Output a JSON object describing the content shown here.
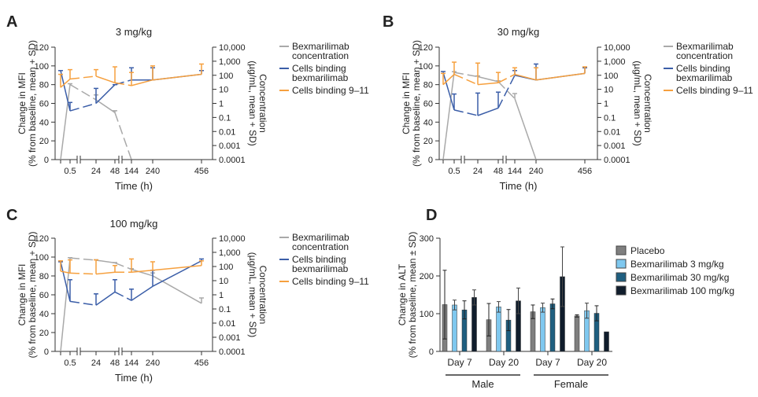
{
  "colors": {
    "concentration": "#a9a9a9",
    "bex": "#3b5ea8",
    "nine11": "#f6a03e",
    "axis": "#333333"
  },
  "shared_line": {
    "xlabel": "Time (h)",
    "ylabel": [
      "Change in MFI",
      "(% from baseline, mean + SD)"
    ],
    "y2label": [
      "Concentration",
      "(µg/mL, mean + SD)"
    ],
    "x_ticks": [
      "0.5",
      "24",
      "48",
      "144",
      "240",
      "456"
    ],
    "y_ticks": [
      "0",
      "20",
      "40",
      "60",
      "80",
      "100",
      "120"
    ],
    "y2_ticks": [
      "0.0001",
      "0.001",
      "0.01",
      "0.1",
      "1",
      "10",
      "100",
      "1,000",
      "10,000"
    ],
    "legend": [
      [
        "Bexmarilimab",
        "concentration"
      ],
      [
        "Cells binding",
        "bexmarilimab"
      ],
      [
        "Cells binding 9–11"
      ]
    ]
  },
  "chart_data": [
    {
      "panel": "A",
      "type": "line",
      "title": "3 mg/kg",
      "x": [
        0,
        0.5,
        24,
        48,
        144,
        240,
        456
      ],
      "ylim": [
        0,
        120
      ],
      "y2lim": [
        0.0001,
        10000
      ],
      "y2scale": "log",
      "series": [
        {
          "name": "Bexmarilimab concentration",
          "axis": "right",
          "values": [
            0.0001,
            22,
            1.8,
            0.22,
            0.0001,
            null,
            null
          ],
          "sd_upper": [
            null,
            25,
            4,
            0.3,
            null,
            null,
            null
          ]
        },
        {
          "name": "Cells binding bexmarilimab",
          "axis": "left",
          "values": [
            95,
            52,
            60,
            80,
            85,
            85,
            91
          ],
          "sd_upper": [
            95,
            61,
            76,
            80,
            98,
            98,
            95
          ]
        },
        {
          "name": "Cells binding 9–11",
          "axis": "left",
          "values": [
            77,
            86,
            89,
            82,
            79,
            85,
            91
          ],
          "sd_upper": [
            91,
            96,
            96,
            99,
            93,
            100,
            102
          ]
        }
      ]
    },
    {
      "panel": "B",
      "type": "line",
      "title": "30 mg/kg",
      "x": [
        0,
        0.5,
        24,
        48,
        144,
        240,
        456
      ],
      "ylim": [
        0,
        120
      ],
      "y2lim": [
        0.0001,
        10000
      ],
      "y2scale": "log",
      "series": [
        {
          "name": "Bexmarilimab concentration",
          "axis": "right",
          "values": [
            0.0001,
            160,
            80,
            35,
            2.2,
            0.0001,
            null
          ],
          "sd_upper": [
            null,
            180,
            90,
            40,
            5,
            null,
            null
          ]
        },
        {
          "name": "Cells binding bexmarilimab",
          "axis": "left",
          "values": [
            93,
            53,
            47,
            55,
            90,
            85,
            92
          ],
          "sd_upper": [
            94,
            70,
            71,
            72,
            95,
            102,
            98
          ]
        },
        {
          "name": "Cells binding 9–11",
          "axis": "left",
          "values": [
            80,
            91,
            80,
            82,
            91,
            85,
            92
          ],
          "sd_upper": [
            92,
            104,
            103,
            93,
            98,
            98,
            99
          ]
        }
      ]
    },
    {
      "panel": "C",
      "type": "line",
      "title": "100 mg/kg",
      "x": [
        0,
        0.5,
        24,
        48,
        144,
        240,
        456
      ],
      "ylim": [
        0,
        120
      ],
      "y2lim": [
        0.0001,
        10000
      ],
      "y2scale": "log",
      "series": [
        {
          "name": "Bexmarilimab concentration",
          "axis": "right",
          "values": [
            0.0001,
            400,
            280,
            180,
            63,
            22,
            0.25
          ],
          "sd_upper": [
            null,
            420,
            300,
            190,
            70,
            35,
            0.6
          ]
        },
        {
          "name": "Cells binding bexmarilimab",
          "axis": "left",
          "values": [
            95,
            53,
            49,
            63,
            54,
            69,
            96
          ],
          "sd_upper": [
            95,
            76,
            61,
            76,
            66,
            86,
            98
          ]
        },
        {
          "name": "Cells binding 9–11",
          "axis": "left",
          "values": [
            85,
            83,
            82,
            84,
            84,
            86,
            91
          ],
          "sd_upper": [
            96,
            97,
            97,
            91,
            98,
            95,
            96
          ]
        }
      ]
    },
    {
      "panel": "D",
      "type": "bar",
      "ylabel": [
        "Change in ALT",
        "(% from baseline, mean ± SD)"
      ],
      "ylim": [
        0,
        300
      ],
      "y_ticks": [
        "0",
        "100",
        "200",
        "300"
      ],
      "categories": [
        "Day 7",
        "Day 20",
        "Day 7",
        "Day 20"
      ],
      "groups": [
        {
          "label": "Male",
          "categories": [
            0,
            1
          ]
        },
        {
          "label": "Female",
          "categories": [
            2,
            3
          ]
        }
      ],
      "series": [
        {
          "name": "Placebo",
          "color": "#7f7f7f",
          "values": [
            124,
            84,
            105,
            94
          ],
          "sd": [
            91,
            43,
            18,
            3
          ]
        },
        {
          "name": "Bexmarilimab 3 mg/kg",
          "color": "#7fc8ef",
          "values": [
            123,
            118,
            116,
            108
          ],
          "sd": [
            13,
            14,
            12,
            20
          ]
        },
        {
          "name": "Bexmarilimab 30 mg/kg",
          "color": "#1f5f80",
          "values": [
            110,
            83,
            126,
            101
          ],
          "sd": [
            24,
            28,
            13,
            20
          ]
        },
        {
          "name": "Bexmarilimab 100 mg/kg",
          "color": "#101d2c",
          "values": [
            143,
            134,
            198,
            52
          ],
          "sd": [
            20,
            34,
            79,
            0
          ]
        }
      ],
      "legend": "right"
    }
  ]
}
